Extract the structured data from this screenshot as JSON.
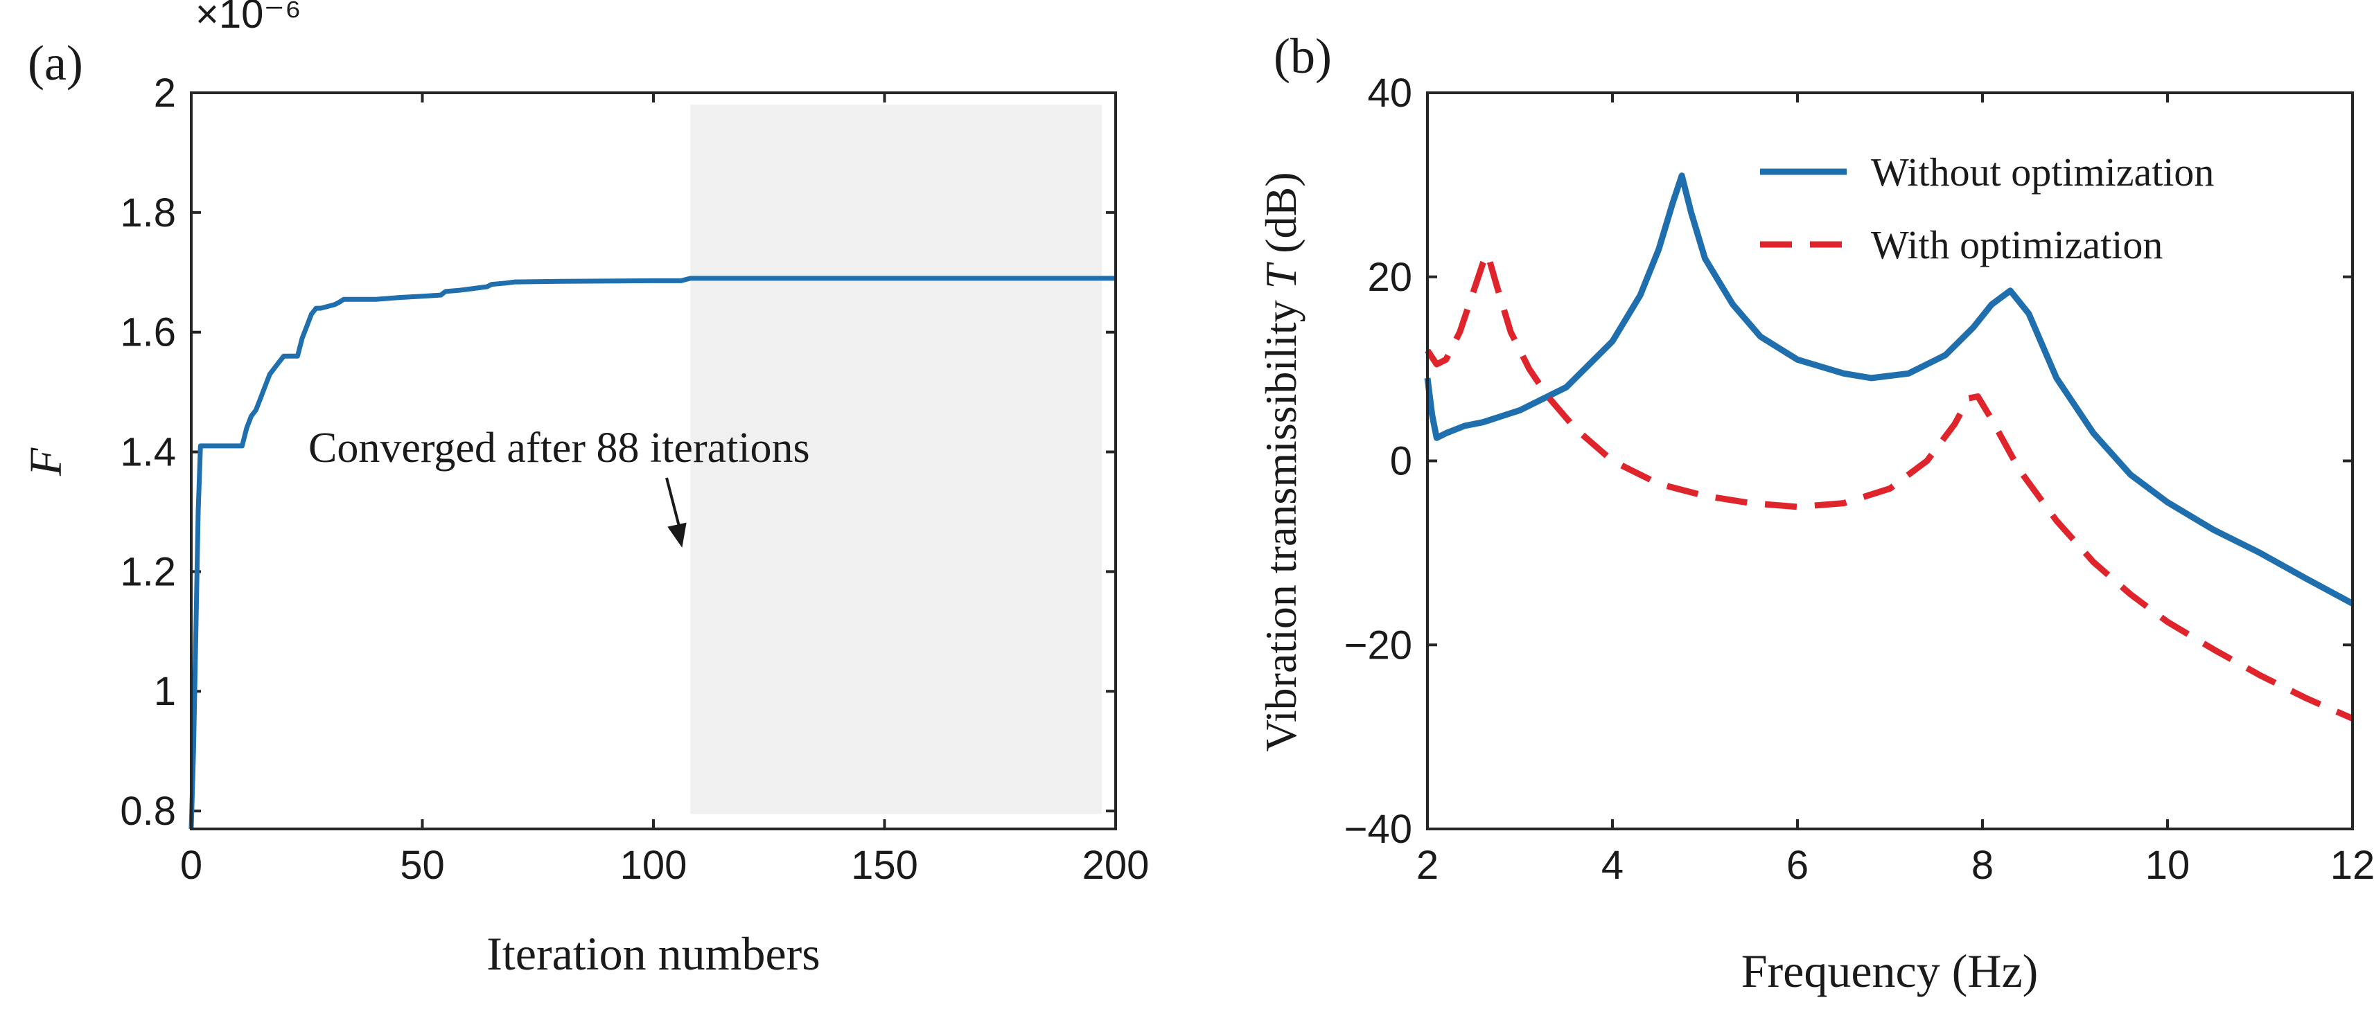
{
  "colors": {
    "axis": "#262626",
    "blue": "#1f6fae",
    "red": "#e0242b",
    "shade": "#f0f0f0",
    "text": "#1a1a1a"
  },
  "chart_data": [
    {
      "panel_label": "(a)",
      "type": "line",
      "title": "",
      "xlabel": "Iteration numbers",
      "ylabel": "F",
      "y_exponent": "×10⁻⁶",
      "xlim": [
        0,
        200
      ],
      "ylim": [
        0.77,
        2.0
      ],
      "xticks": [
        0,
        50,
        100,
        150,
        200
      ],
      "xtick_labels": [
        "0",
        "50",
        "100",
        "150",
        "200"
      ],
      "yticks": [
        0.8,
        1.0,
        1.2,
        1.4,
        1.6,
        1.8,
        2.0
      ],
      "ytick_labels": [
        "0.8",
        "1",
        "1.2",
        "1.4",
        "1.6",
        "1.8",
        "2"
      ],
      "shaded_region": {
        "x_start": 108,
        "x_end": 197,
        "y_start": 0.795,
        "y_end": 1.98
      },
      "annotation": {
        "text": "Converged after 88 iterations",
        "arrow_x": 108,
        "arrow_y": 1.24
      },
      "series": [
        {
          "name": "F",
          "x": [
            0,
            0.5,
            1,
            1.5,
            2,
            3,
            4,
            8,
            11,
            12,
            13,
            14,
            15,
            16,
            17,
            18,
            19,
            20,
            23,
            24,
            25,
            26,
            27,
            28,
            31,
            32,
            33,
            40,
            45,
            50,
            54,
            55,
            58,
            60,
            64,
            65,
            68,
            70,
            80,
            100,
            106,
            108,
            150,
            200
          ],
          "y": [
            0.77,
            0.9,
            1.1,
            1.3,
            1.41,
            1.41,
            1.41,
            1.41,
            1.41,
            1.44,
            1.46,
            1.47,
            1.49,
            1.51,
            1.53,
            1.54,
            1.55,
            1.56,
            1.56,
            1.59,
            1.61,
            1.63,
            1.64,
            1.64,
            1.646,
            1.65,
            1.655,
            1.655,
            1.658,
            1.66,
            1.662,
            1.668,
            1.67,
            1.672,
            1.676,
            1.68,
            1.682,
            1.684,
            1.685,
            1.686,
            1.686,
            1.69,
            1.69,
            1.69
          ]
        }
      ]
    },
    {
      "panel_label": "(b)",
      "type": "line",
      "title": "",
      "xlabel": "Frequency (Hz)",
      "ylabel": "Vibration transmissibility T (dB)",
      "ylabel_parts": {
        "prefix": "Vibration transmissibility ",
        "symbol": "T",
        "suffix": " (dB)"
      },
      "xlim": [
        2,
        12
      ],
      "ylim": [
        -40,
        40
      ],
      "xticks": [
        2,
        4,
        6,
        8,
        10,
        12
      ],
      "xtick_labels": [
        "2",
        "4",
        "6",
        "8",
        "10",
        "12"
      ],
      "yticks": [
        -40,
        -20,
        0,
        20,
        40
      ],
      "ytick_labels": [
        "−40",
        "−20",
        "0",
        "20",
        "40"
      ],
      "legend_position": "top-right",
      "series": [
        {
          "name": "Without optimization",
          "style": "solid",
          "color": "#1f6fae",
          "x": [
            2.0,
            2.05,
            2.1,
            2.2,
            2.4,
            2.6,
            3.0,
            3.5,
            4.0,
            4.3,
            4.5,
            4.65,
            4.75,
            4.85,
            5.0,
            5.3,
            5.6,
            6.0,
            6.5,
            6.8,
            7.2,
            7.6,
            7.9,
            8.1,
            8.3,
            8.5,
            8.8,
            9.2,
            9.6,
            10.0,
            10.5,
            11.0,
            11.5,
            12.0
          ],
          "y": [
            9,
            5,
            2.5,
            3,
            3.8,
            4.2,
            5.5,
            8,
            13,
            18,
            23,
            28,
            31,
            27,
            22,
            17,
            13.5,
            11,
            9.5,
            9,
            9.5,
            11.5,
            14.5,
            17,
            18.5,
            16,
            9,
            3,
            -1.5,
            -4.5,
            -7.5,
            -10,
            -12.8,
            -15.5
          ]
        },
        {
          "name": "With optimization",
          "style": "dashed",
          "color": "#e0242b",
          "x": [
            2.0,
            2.1,
            2.2,
            2.35,
            2.5,
            2.6,
            2.65,
            2.75,
            2.9,
            3.1,
            3.3,
            3.6,
            4.0,
            4.5,
            5.0,
            5.5,
            6.0,
            6.5,
            7.0,
            7.4,
            7.7,
            7.85,
            7.95,
            8.1,
            8.4,
            8.8,
            9.2,
            9.6,
            10.0,
            10.5,
            11.0,
            11.5,
            12.0
          ],
          "y": [
            12,
            10.5,
            11,
            14,
            18.5,
            21.5,
            22.5,
            19,
            14,
            10,
            7,
            3.5,
            0,
            -2.5,
            -3.8,
            -4.6,
            -5,
            -4.6,
            -3,
            0,
            4,
            6.8,
            7,
            4.5,
            -1,
            -6.5,
            -11,
            -14.5,
            -17.5,
            -20.5,
            -23.3,
            -25.8,
            -28
          ]
        }
      ]
    }
  ]
}
